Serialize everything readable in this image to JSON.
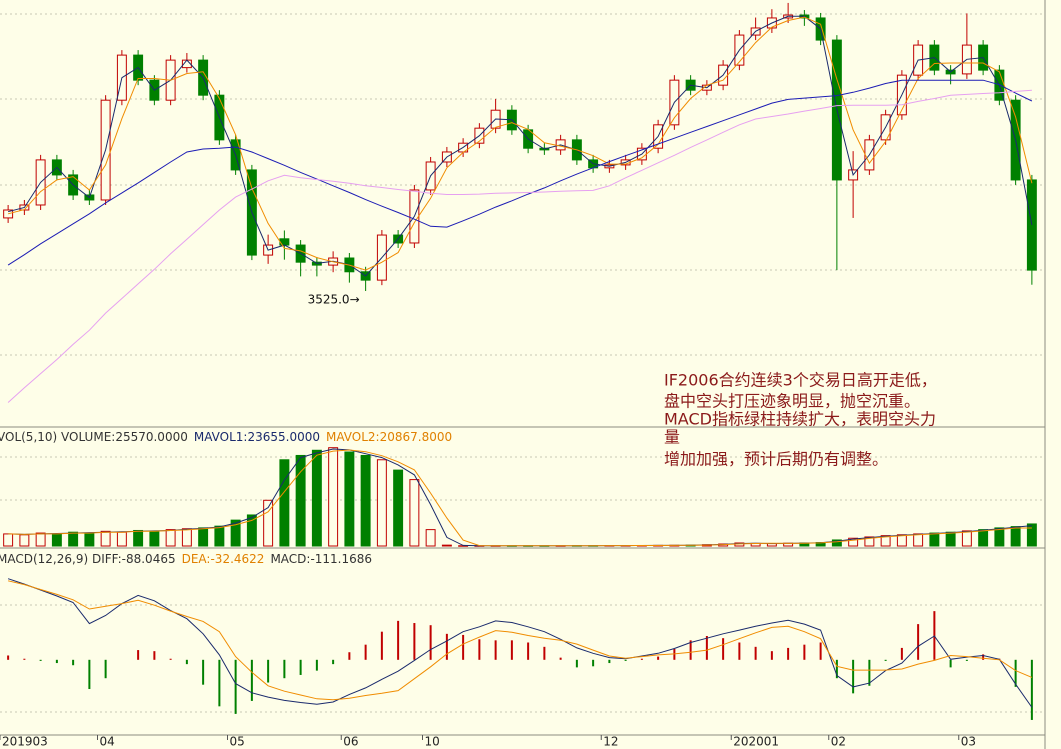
{
  "chart_data": [
    {
      "type": "candlestick",
      "open": [
        3700,
        3719,
        3731,
        3839,
        3803,
        3755,
        3743,
        3982,
        4090,
        4030,
        3982,
        4060,
        4078,
        3994,
        3887,
        3815,
        3611,
        3650,
        3635,
        3594,
        3587,
        3604,
        3571,
        3551,
        3659,
        3640,
        3767,
        3834,
        3858,
        3879,
        3915,
        3958,
        3911,
        3867,
        3863,
        3887,
        3839,
        3820,
        3827,
        3839,
        3867,
        3923,
        4030,
        4006,
        4018,
        4066,
        4138,
        4155,
        4179,
        4186,
        4179,
        4126,
        3791,
        3815,
        3887,
        3947,
        4042,
        4114,
        4054,
        4045,
        4114,
        4054,
        3982,
        3791
      ],
      "high": [
        3731,
        3743,
        3851,
        3851,
        3815,
        3767,
        3994,
        4102,
        4102,
        4042,
        4090,
        4095,
        4090,
        4006,
        3899,
        3827,
        3660,
        3670,
        3647,
        3606,
        3620,
        3616,
        3583,
        3671,
        3671,
        3779,
        3846,
        3870,
        3891,
        3927,
        3985,
        3970,
        3923,
        3879,
        3899,
        3899,
        3851,
        3839,
        3851,
        3879,
        3935,
        4042,
        4042,
        4030,
        4078,
        4150,
        4180,
        4200,
        4215,
        4198,
        4191,
        4138,
        3860,
        3899,
        3959,
        4054,
        4126,
        4126,
        4066,
        4190,
        4126,
        4066,
        3994,
        3803
      ],
      "low": [
        3688,
        3707,
        3719,
        3791,
        3743,
        3731,
        3731,
        3970,
        4018,
        3970,
        3970,
        4048,
        3982,
        3875,
        3803,
        3599,
        3590,
        3600,
        3560,
        3560,
        3570,
        3545,
        3525,
        3539,
        3628,
        3628,
        3755,
        3822,
        3846,
        3867,
        3903,
        3899,
        3855,
        3851,
        3851,
        3827,
        3808,
        3808,
        3815,
        3827,
        3855,
        3911,
        3994,
        3994,
        4006,
        4054,
        4126,
        4143,
        4167,
        4160,
        4114,
        3575,
        3700,
        3803,
        3875,
        3935,
        4030,
        4042,
        4020,
        4033,
        4042,
        3970,
        3779,
        3540
      ],
      "close": [
        3719,
        3731,
        3839,
        3803,
        3755,
        3743,
        3982,
        4090,
        4030,
        3982,
        4078,
        4078,
        3994,
        3887,
        3815,
        3611,
        3635,
        3635,
        3594,
        3587,
        3604,
        3571,
        3551,
        3659,
        3640,
        3767,
        3834,
        3858,
        3879,
        3915,
        3958,
        3911,
        3867,
        3863,
        3887,
        3839,
        3820,
        3827,
        3839,
        3867,
        3923,
        4030,
        4006,
        4018,
        4066,
        4138,
        4155,
        4179,
        4186,
        4179,
        4126,
        3791,
        3815,
        3887,
        3947,
        4042,
        4114,
        4054,
        4045,
        4114,
        4054,
        3982,
        3791,
        3575
      ],
      "ylim": [
        3204,
        4222
      ],
      "up_color": "#c00000",
      "down_color": "#008000",
      "series": [
        {
          "color": "#1a2a6c",
          "values": [
            3715,
            3725,
            3785,
            3821,
            3779,
            3749,
            3863,
            4036,
            4060,
            4006,
            4030,
            4078,
            4036,
            3941,
            3851,
            3713,
            3623,
            3635,
            3615,
            3591,
            3596,
            3588,
            3561,
            3605,
            3650,
            3704,
            3801,
            3846,
            3869,
            3897,
            3937,
            3935,
            3889,
            3865,
            3875,
            3863,
            3830,
            3824,
            3833,
            3853,
            3895,
            3977,
            4018,
            4012,
            4042,
            4102,
            4147,
            4167,
            4183,
            4183,
            4153,
            3959,
            3803,
            3851,
            3917,
            3995,
            4078,
            4084,
            4050,
            4080,
            4084,
            4018,
            3887,
            3683
          ]
        },
        {
          "color": "#f08c00",
          "values": [
            3710,
            3720,
            3763,
            3791,
            3799,
            3767,
            3827,
            3938,
            4034,
            4034,
            4030,
            4046,
            4050,
            3986,
            3899,
            3771,
            3687,
            3627,
            3621,
            3605,
            3595,
            3587,
            3575,
            3594,
            3617,
            3689,
            3747,
            3820,
            3857,
            3884,
            3917,
            3928,
            3912,
            3880,
            3872,
            3863,
            3849,
            3829,
            3829,
            3844,
            3876,
            3940,
            3986,
            4018,
            4030,
            4074,
            4120,
            4157,
            4173,
            4181,
            4164,
            4032,
            3911,
            3831,
            3883,
            3959,
            4034,
            4070,
            4071,
            4071,
            4071,
            4050,
            3942,
            3783
          ]
        },
        {
          "color": "#1c1cb4",
          "values": [
            3587,
            3612,
            3638,
            3662,
            3686,
            3710,
            3736,
            3760,
            3784,
            3809,
            3834,
            3858,
            3865,
            3867,
            3870,
            3858,
            3842,
            3826,
            3809,
            3793,
            3777,
            3761,
            3744,
            3728,
            3713,
            3697,
            3680,
            3678,
            3693,
            3709,
            3726,
            3741,
            3757,
            3772,
            3789,
            3805,
            3820,
            3835,
            3849,
            3863,
            3877,
            3891,
            3905,
            3919,
            3933,
            3947,
            3961,
            3975,
            3984,
            3987,
            3990,
            3993,
            4001,
            4011,
            4022,
            4030,
            4030,
            4030,
            4030,
            4030,
            4030,
            4019,
            3999,
            3980
          ]
        },
        {
          "color": "#e6a0f0",
          "values": [
            3258,
            3293,
            3327,
            3361,
            3397,
            3431,
            3472,
            3507,
            3542,
            3577,
            3614,
            3649,
            3684,
            3719,
            3750,
            3769,
            3789,
            3802,
            3796,
            3792,
            3788,
            3783,
            3777,
            3773,
            3768,
            3764,
            3759,
            3756,
            3756,
            3757,
            3759,
            3760,
            3761,
            3762,
            3764,
            3765,
            3766,
            3777,
            3796,
            3814,
            3832,
            3850,
            3869,
            3887,
            3905,
            3923,
            3937,
            3943,
            3949,
            3956,
            3962,
            3969,
            3970,
            3970,
            3970,
            3971,
            3979,
            3986,
            3994,
            3996,
            3998,
            4000,
            4003,
            4006
          ]
        }
      ],
      "min_label": {
        "value": 3525,
        "label": "3525.0→"
      },
      "note": [
        "IF2006合约连续3个交易日高开走低，",
        "盘中空头打压迹象明显，抛空沉重。",
        "MACD指标绿柱持续扩大，表明空头力",
        "量",
        "增加加强，预计后期仍有调整。"
      ],
      "note_color": "#8b1a1a"
    },
    {
      "type": "volume",
      "header": [
        {
          "text": "VOL(5,10) VOLUME:25570.0000",
          "color": "#333333"
        },
        {
          "text": "MAVOL1:23655.0000",
          "color": "#1a2a6c"
        },
        {
          "text": "MAVOL2:20867.8000",
          "color": "#e08000"
        }
      ],
      "values": [
        14000,
        13000,
        15000,
        14000,
        16000,
        15000,
        17000,
        16000,
        18000,
        17000,
        19000,
        20000,
        21000,
        23000,
        30000,
        36000,
        53000,
        100000,
        105000,
        111000,
        114000,
        109000,
        105000,
        100000,
        88000,
        77000,
        19000,
        1000,
        300,
        300,
        300,
        300,
        300,
        300,
        300,
        400,
        400,
        500,
        500,
        600,
        700,
        800,
        1000,
        1500,
        2300,
        3500,
        3000,
        2800,
        3200,
        3500,
        4000,
        7000,
        9000,
        10500,
        12000,
        13000,
        14000,
        15000,
        16000,
        17500,
        19000,
        21000,
        22500,
        25570
      ],
      "ylim": [
        0,
        138000
      ],
      "series": [
        {
          "color": "#1a2a6c",
          "values": [
            14000,
            13500,
            14000,
            14500,
            15000,
            15500,
            16000,
            16500,
            17000,
            17500,
            18000,
            19500,
            20500,
            22000,
            26500,
            33000,
            44500,
            76500,
            102500,
            108000,
            112500,
            111500,
            107000,
            102500,
            94000,
            82500,
            48000,
            10000,
            650,
            300,
            300,
            300,
            300,
            300,
            300,
            350,
            400,
            450,
            500,
            550,
            650,
            750,
            900,
            1250,
            1900,
            2900,
            3250,
            2900,
            3000,
            3350,
            3750,
            5500,
            8000,
            9750,
            11250,
            12500,
            13500,
            14500,
            15500,
            16750,
            18250,
            20000,
            21750,
            23655
          ]
        },
        {
          "color": "#f08c00",
          "values": [
            14000,
            13500,
            14000,
            14000,
            15000,
            15000,
            16000,
            16000,
            17000,
            17000,
            18000,
            18700,
            20000,
            21300,
            24700,
            29700,
            39700,
            63000,
            86000,
            105300,
            110000,
            111300,
            109300,
            104700,
            97700,
            88300,
            61300,
            32300,
            6800,
            500,
            300,
            300,
            300,
            300,
            300,
            330,
            370,
            430,
            470,
            530,
            600,
            700,
            830,
            1100,
            1600,
            2430,
            2930,
            3100,
            3000,
            3170,
            3570,
            4830,
            6670,
            8830,
            10500,
            11830,
            13000,
            14000,
            15000,
            16170,
            17500,
            19170,
            20830,
            20867.8
          ]
        }
      ]
    },
    {
      "type": "macd",
      "header": [
        {
          "text": "MACD(12,26,9) DIFF:-88.0465",
          "color": "#333333"
        },
        {
          "text": "DEA:-32.4622",
          "color": "#e08000"
        },
        {
          "text": "MACD:-111.1686",
          "color": "#333333"
        }
      ],
      "categories": [
        "201903",
        null,
        null,
        null,
        null,
        null,
        "04",
        null,
        null,
        null,
        null,
        null,
        null,
        null,
        "05",
        null,
        null,
        null,
        null,
        null,
        null,
        "06",
        null,
        null,
        null,
        null,
        "10",
        null,
        null,
        null,
        null,
        null,
        null,
        null,
        null,
        null,
        null,
        "12",
        null,
        null,
        null,
        null,
        null,
        null,
        null,
        "202001",
        null,
        null,
        null,
        null,
        null,
        "02",
        null,
        null,
        null,
        null,
        null,
        null,
        null,
        "03",
        null,
        null,
        null,
        null
      ],
      "values": [
        8,
        2,
        -2,
        -6,
        -10,
        -54,
        -34,
        0,
        18,
        16,
        2,
        -8,
        -46,
        -86,
        -100,
        -76,
        -42,
        -34,
        -28,
        -20,
        -8,
        14,
        28,
        52,
        72,
        68,
        64,
        48,
        46,
        38,
        36,
        36,
        32,
        24,
        4,
        -14,
        -12,
        -6,
        -2,
        2,
        6,
        20,
        36,
        44,
        40,
        32,
        24,
        16,
        22,
        28,
        32,
        -34,
        -62,
        -48,
        -2,
        22,
        66,
        90,
        -14,
        -2,
        10,
        2,
        -50,
        -111.1686
      ],
      "ylim": [
        -139,
        203
      ],
      "up_color": "#c00000",
      "down_color": "#008000",
      "series": [
        {
          "color": "#1a2a6c",
          "values": [
            150,
            140,
            129,
            118,
            106,
            67,
            82,
            104,
            119,
            109,
            91,
            76,
            48,
            9,
            -44,
            -61,
            -69,
            -75,
            -79,
            -82,
            -78,
            -64,
            -52,
            -36,
            -21,
            -1,
            19,
            35,
            52,
            61,
            72,
            69,
            61,
            52,
            38,
            22,
            12,
            4,
            2,
            7,
            12,
            21,
            32,
            40,
            48,
            55,
            62,
            68,
            73,
            66,
            55,
            -29,
            -50,
            -43,
            -20,
            -6,
            25,
            44,
            1,
            5,
            8,
            1,
            -45,
            -88.0465
          ]
        },
        {
          "color": "#f08c00",
          "values": [
            146,
            139,
            130,
            121,
            111,
            94,
            99,
            104,
            110,
            101,
            90,
            80,
            71,
            52,
            6,
            -23,
            -48,
            -58,
            -65,
            -72,
            -74,
            -71,
            -66,
            -62,
            -57,
            -35,
            -13,
            11,
            29,
            42,
            54,
            51,
            45,
            40,
            36,
            29,
            18,
            7,
            3,
            6,
            9,
            11,
            14,
            18,
            28,
            39,
            50,
            60,
            62,
            52,
            39,
            -12,
            -19,
            -19,
            -19,
            -17,
            -8,
            -1,
            8,
            6,
            3,
            0,
            -20,
            -32.4622
          ]
        }
      ]
    }
  ]
}
